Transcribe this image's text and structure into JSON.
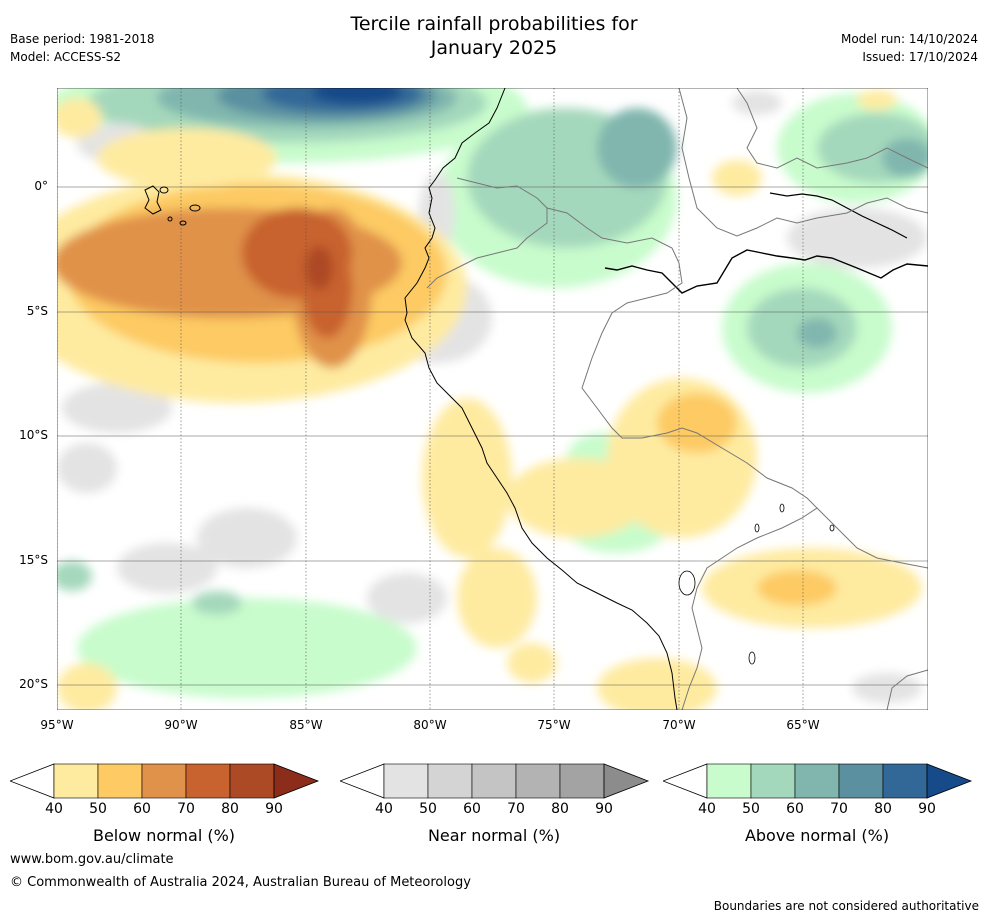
{
  "title_line1": "Tercile rainfall probabilities for",
  "title_line2": "January 2025",
  "base_period": "Base period: 1981-2018",
  "model": "Model: ACCESS-S2",
  "model_run": "Model run: 14/10/2024",
  "issued": "Issued: 17/10/2024",
  "lat_labels": [
    "0°",
    "5°S",
    "10°S",
    "15°S",
    "20°S"
  ],
  "lon_labels": [
    "95°W",
    "90°W",
    "85°W",
    "80°W",
    "75°W",
    "70°W",
    "65°W"
  ],
  "legends": [
    {
      "title": "Below normal (%)",
      "ticks": [
        "40",
        "50",
        "60",
        "70",
        "80",
        "90"
      ],
      "colors": [
        "#ffffff",
        "#feeba0",
        "#fdca63",
        "#e0924a",
        "#c8622f",
        "#ad4a26",
        "#8c2d1c"
      ]
    },
    {
      "title": "Near normal (%)",
      "ticks": [
        "40",
        "50",
        "60",
        "70",
        "80",
        "90"
      ],
      "colors": [
        "#ffffff",
        "#e3e3e3",
        "#d4d4d4",
        "#c4c4c4",
        "#b3b3b3",
        "#a3a3a3",
        "#8c8c8c"
      ]
    },
    {
      "title": "Above normal (%)",
      "ticks": [
        "40",
        "50",
        "60",
        "70",
        "80",
        "90"
      ],
      "colors": [
        "#ffffff",
        "#c8fccc",
        "#a4d8bc",
        "#80b6ae",
        "#5a90a0",
        "#316898",
        "#174a88"
      ]
    }
  ],
  "website": "www.bom.gov.au/climate",
  "copyright": "© Commonwealth of Australia 2024, Australian Bureau of Meteorology",
  "disclaimer": "Boundaries are not considered authoritative"
}
